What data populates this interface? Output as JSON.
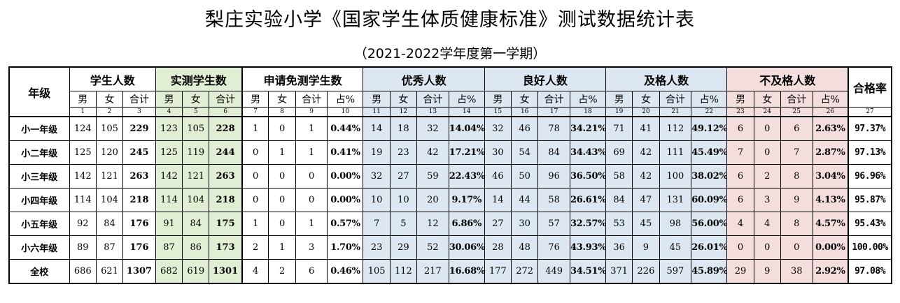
{
  "title": "梨庄实验小学《国家学生体质健康标准》测试数据统计表",
  "subtitle": "（2021-2022学年度第一学期）",
  "table": {
    "grade_header": "年级",
    "pass_rate_header": "合格率",
    "groups": [
      "学生人数",
      "实测学生数",
      "申请免测学生数",
      "优秀人数",
      "良好人数",
      "及格人数",
      "不及格人数"
    ],
    "sub_headers": [
      [
        "男",
        "女",
        "合计"
      ],
      [
        "男",
        "女",
        "合计"
      ],
      [
        "男",
        "女",
        "合计",
        "占%"
      ],
      [
        "男",
        "女",
        "合计",
        "占%"
      ],
      [
        "男",
        "女",
        "合计",
        "占%"
      ],
      [
        "男",
        "女",
        "合计",
        "占%"
      ],
      [
        "男",
        "女",
        "合计",
        "占%"
      ]
    ],
    "col_numbers": [
      "1",
      "2",
      "3",
      "4",
      "5",
      "6",
      "7",
      "8",
      "9",
      "10",
      "11",
      "12",
      "13",
      "14",
      "15",
      "16",
      "17",
      "18",
      "19",
      "20",
      "21",
      "22",
      "23",
      "24",
      "25",
      "26",
      "27"
    ],
    "rows": [
      {
        "grade": "小一年级",
        "v": [
          "124",
          "105",
          "229",
          "123",
          "105",
          "228",
          "1",
          "0",
          "1",
          "0.44%",
          "14",
          "18",
          "32",
          "14.04%",
          "32",
          "46",
          "78",
          "34.21%",
          "71",
          "41",
          "112",
          "49.12%",
          "6",
          "0",
          "6",
          "2.63%",
          "97.37%"
        ]
      },
      {
        "grade": "小二年级",
        "v": [
          "125",
          "120",
          "245",
          "125",
          "119",
          "244",
          "0",
          "1",
          "1",
          "0.41%",
          "19",
          "23",
          "42",
          "17.21%",
          "30",
          "54",
          "84",
          "34.43%",
          "69",
          "42",
          "111",
          "45.49%",
          "7",
          "0",
          "7",
          "2.87%",
          "97.13%"
        ]
      },
      {
        "grade": "小三年级",
        "v": [
          "142",
          "121",
          "263",
          "142",
          "121",
          "263",
          "0",
          "0",
          "0",
          "0.00%",
          "32",
          "27",
          "59",
          "22.43%",
          "46",
          "50",
          "96",
          "36.50%",
          "58",
          "42",
          "100",
          "38.02%",
          "6",
          "2",
          "8",
          "3.04%",
          "96.96%"
        ]
      },
      {
        "grade": "小四年级",
        "v": [
          "114",
          "104",
          "218",
          "114",
          "104",
          "218",
          "0",
          "0",
          "0",
          "0.00%",
          "10",
          "10",
          "20",
          "9.17%",
          "14",
          "44",
          "58",
          "26.61%",
          "84",
          "47",
          "131",
          "60.09%",
          "6",
          "3",
          "9",
          "4.13%",
          "95.87%"
        ]
      },
      {
        "grade": "小五年级",
        "v": [
          "92",
          "84",
          "176",
          "91",
          "84",
          "175",
          "1",
          "0",
          "1",
          "0.57%",
          "7",
          "5",
          "12",
          "6.86%",
          "27",
          "30",
          "57",
          "32.57%",
          "53",
          "45",
          "98",
          "56.00%",
          "4",
          "4",
          "8",
          "4.57%",
          "95.43%"
        ]
      },
      {
        "grade": "小六年级",
        "v": [
          "89",
          "87",
          "176",
          "87",
          "86",
          "173",
          "2",
          "1",
          "3",
          "1.70%",
          "23",
          "29",
          "52",
          "30.06%",
          "28",
          "48",
          "76",
          "43.93%",
          "36",
          "9",
          "45",
          "26.01%",
          "0",
          "0",
          "0",
          "0.00%",
          "100.00%"
        ]
      },
      {
        "grade": "全校",
        "v": [
          "686",
          "621",
          "1307",
          "682",
          "619",
          "1301",
          "4",
          "2",
          "6",
          "0.46%",
          "105",
          "112",
          "217",
          "16.68%",
          "177",
          "272",
          "449",
          "34.51%",
          "371",
          "226",
          "597",
          "45.89%",
          "29",
          "9",
          "38",
          "2.92%",
          "97.08%"
        ]
      }
    ]
  }
}
